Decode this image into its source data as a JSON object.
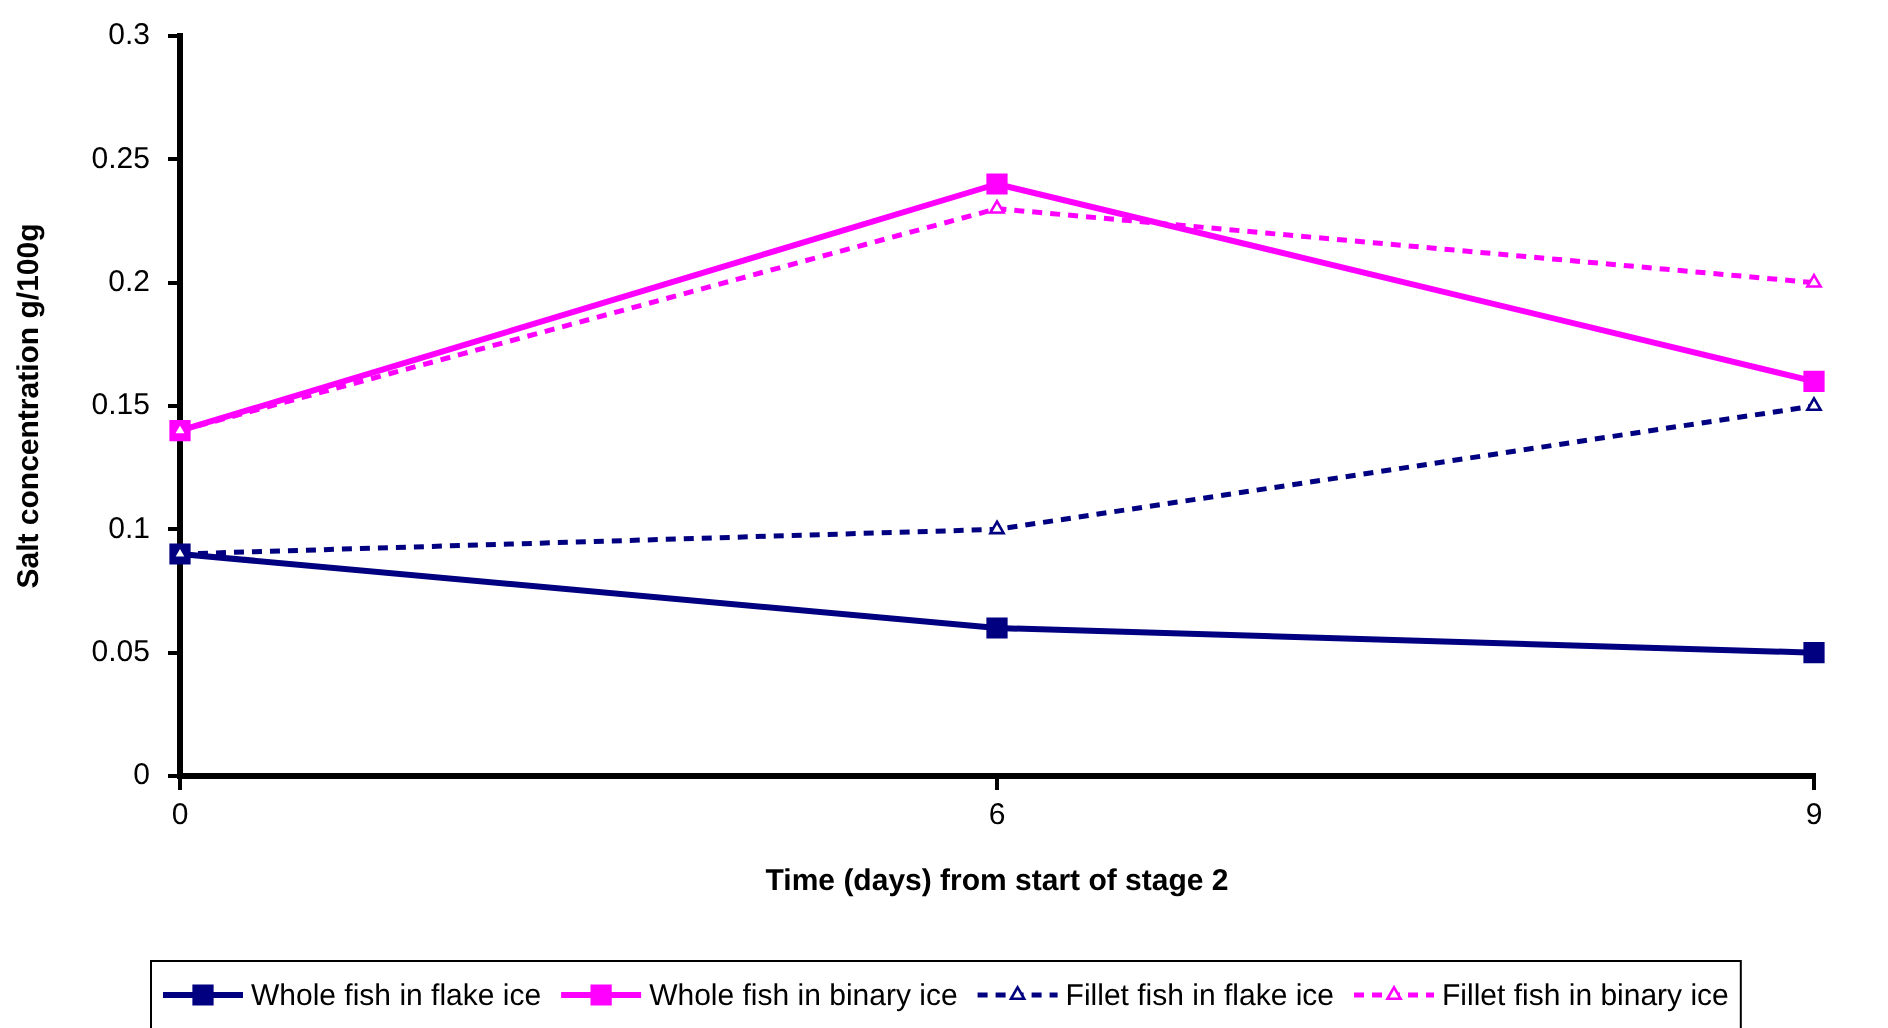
{
  "chart_data": {
    "type": "line",
    "xlabel": "Time (days) from start of stage 2",
    "ylabel": "Salt concentration g/100g",
    "categories": [
      "0",
      "6",
      "9"
    ],
    "ylim": [
      0,
      0.3
    ],
    "yticks": [
      0,
      0.05,
      0.1,
      0.15,
      0.2,
      0.25,
      0.3
    ],
    "legend": "bottom",
    "series": [
      {
        "name": "Whole fish in flake ice",
        "color": "#000080",
        "values": [
          0.09,
          0.06,
          0.05
        ],
        "marker": "square",
        "line_style": "solid"
      },
      {
        "name": "Whole fish in binary ice",
        "color": "#ff00ff",
        "values": [
          0.14,
          0.24,
          0.16
        ],
        "marker": "square",
        "line_style": "solid"
      },
      {
        "name": "Fillet fish in flake ice",
        "color": "#000080",
        "values": [
          0.09,
          0.1,
          0.15
        ],
        "marker": "triangle",
        "line_style": "dashed"
      },
      {
        "name": "Fillet fish in binary ice",
        "color": "#ff00ff",
        "values": [
          0.14,
          0.23,
          0.2
        ],
        "marker": "triangle",
        "line_style": "dashed"
      }
    ]
  }
}
